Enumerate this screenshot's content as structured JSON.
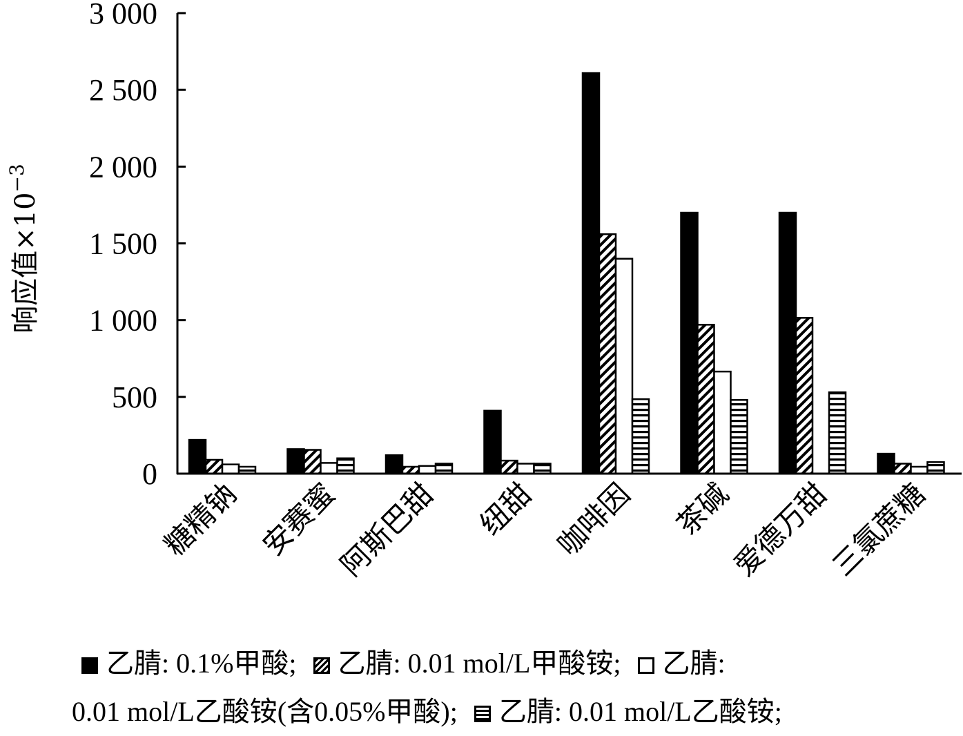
{
  "chart_data": {
    "type": "bar",
    "ylabel": "响应值×10",
    "ylabel_exponent": "−3",
    "ylim": [
      0,
      3000
    ],
    "yticks": [
      {
        "value": 0,
        "label": "0"
      },
      {
        "value": 500,
        "label": "500"
      },
      {
        "value": 1000,
        "label": "1 000"
      },
      {
        "value": 1500,
        "label": "1 500"
      },
      {
        "value": 2000,
        "label": "2 000"
      },
      {
        "value": 2500,
        "label": "2 500"
      },
      {
        "value": 3000,
        "label": "3 000"
      }
    ],
    "categories": [
      "糖精钠",
      "安赛蜜",
      "阿斯巴甜",
      "纽甜",
      "咖啡因",
      "茶碱",
      "爱德万甜",
      "三氯蔗糖"
    ],
    "series": [
      {
        "name": "乙腈: 0.1%甲酸;",
        "pattern": "solid",
        "values": [
          220,
          160,
          120,
          410,
          2610,
          1700,
          1700,
          130
        ]
      },
      {
        "name": "乙腈: 0.01 mol/L甲酸铵;",
        "pattern": "diagonal",
        "values": [
          90,
          155,
          45,
          85,
          1560,
          970,
          1015,
          65
        ]
      },
      {
        "name": "乙腈: 0.01 mol/L乙酸铵(含0.05%甲酸);",
        "pattern": "hollow",
        "values": [
          60,
          70,
          50,
          65,
          1400,
          665,
          0,
          45
        ]
      },
      {
        "name": "乙腈: 0.01 mol/L乙酸铵;",
        "pattern": "horizontal",
        "values": [
          45,
          100,
          65,
          65,
          485,
          480,
          530,
          75
        ]
      }
    ],
    "grid": false,
    "legend_position": "bottom"
  },
  "legend_lines": [
    {
      "items": [
        {
          "series": 0,
          "text": "乙腈: 0.1%甲酸;"
        },
        {
          "series": 1,
          "text": "乙腈: 0.01 mol/L甲酸铵;"
        },
        {
          "series": 2,
          "text": "乙腈:"
        }
      ]
    },
    {
      "items": [
        {
          "series": null,
          "text": "0.01 mol/L乙酸铵(含0.05%甲酸);"
        },
        {
          "series": 3,
          "text": "乙腈: 0.01 mol/L乙酸铵;"
        }
      ]
    }
  ]
}
